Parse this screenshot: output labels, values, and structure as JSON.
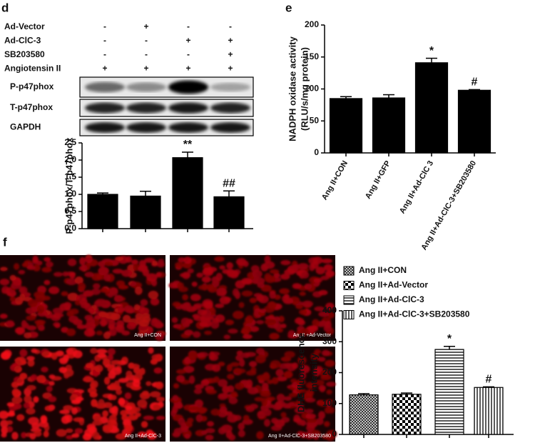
{
  "labels": [
    "d",
    "e",
    "f"
  ],
  "blot": {
    "treatments": [
      {
        "name": "Ad-Vector",
        "signs": [
          "-",
          "+",
          "-",
          "-"
        ]
      },
      {
        "name": "Ad-ClC-3",
        "signs": [
          "-",
          "-",
          "+",
          "+"
        ]
      },
      {
        "name": "SB203580",
        "signs": [
          "-",
          "-",
          "-",
          "+"
        ]
      },
      {
        "name": "Angiotensin II",
        "signs": [
          "+",
          "+",
          "+",
          "+"
        ]
      }
    ],
    "rows": [
      "P-p47phox",
      "T-p47phox",
      "GAPDH"
    ]
  },
  "micrographs": [
    "Ang II+CON",
    "AngII +Ad-Vector",
    "Ang II+Ad-ClC-3",
    "Ang II+Ad-ClC-3+SB203580"
  ],
  "chart_data": [
    {
      "type": "bar",
      "ylabel": [
        "P-p47phox/T-p47phox"
      ],
      "categories": [
        null,
        null,
        null,
        null
      ],
      "values": [
        1.0,
        0.95,
        2.07,
        0.93
      ],
      "errors": [
        0.04,
        0.14,
        0.16,
        0.17
      ],
      "annotations": [
        null,
        null,
        "**",
        "##"
      ],
      "color": "#000000",
      "ylim": [
        0,
        2.5
      ],
      "yticks": [
        {
          "value": 0,
          "label": "0.0"
        },
        0.5,
        {
          "value": 1,
          "label": "1.0"
        },
        1.5,
        {
          "value": 2,
          "label": "2.0"
        },
        2.5
      ]
    },
    {
      "type": "bar",
      "ylabel": [
        "NADPH oxidase activity",
        "(RLU/s/mg protein)"
      ],
      "categories": [
        "Ang II+CON",
        "Ang II+GFP",
        "Ang II+Ad-ClC 3",
        "Ang II+Ad-ClC-3+SB203580"
      ],
      "values": [
        85,
        86,
        141,
        98
      ],
      "errors": [
        3,
        5,
        7,
        1
      ],
      "annotations": [
        null,
        null,
        "*",
        "#"
      ],
      "color": "#000000",
      "ylim": [
        0,
        200
      ],
      "yticks": [
        0,
        50,
        100,
        150,
        200
      ]
    },
    {
      "type": "bar",
      "ylabel": [
        "DHE fluorescence",
        "intensity"
      ],
      "categories": [
        "Ang II+CON",
        "Ang II+Ad-Vector",
        "Ang II+Ad-ClC-3",
        "Ang II+Ad-ClC-3+SB203580"
      ],
      "category_labels": "legend",
      "patterns": [
        "crosshatch",
        "checker",
        "horizontal",
        "vertical"
      ],
      "values": [
        128,
        130,
        275,
        152
      ],
      "errors": [
        4,
        4,
        10,
        2
      ],
      "annotations": [
        null,
        null,
        "*",
        "#"
      ],
      "color": "#000000",
      "ylim": [
        0,
        400
      ],
      "yticks": [
        0,
        100,
        200,
        300,
        400
      ]
    }
  ]
}
